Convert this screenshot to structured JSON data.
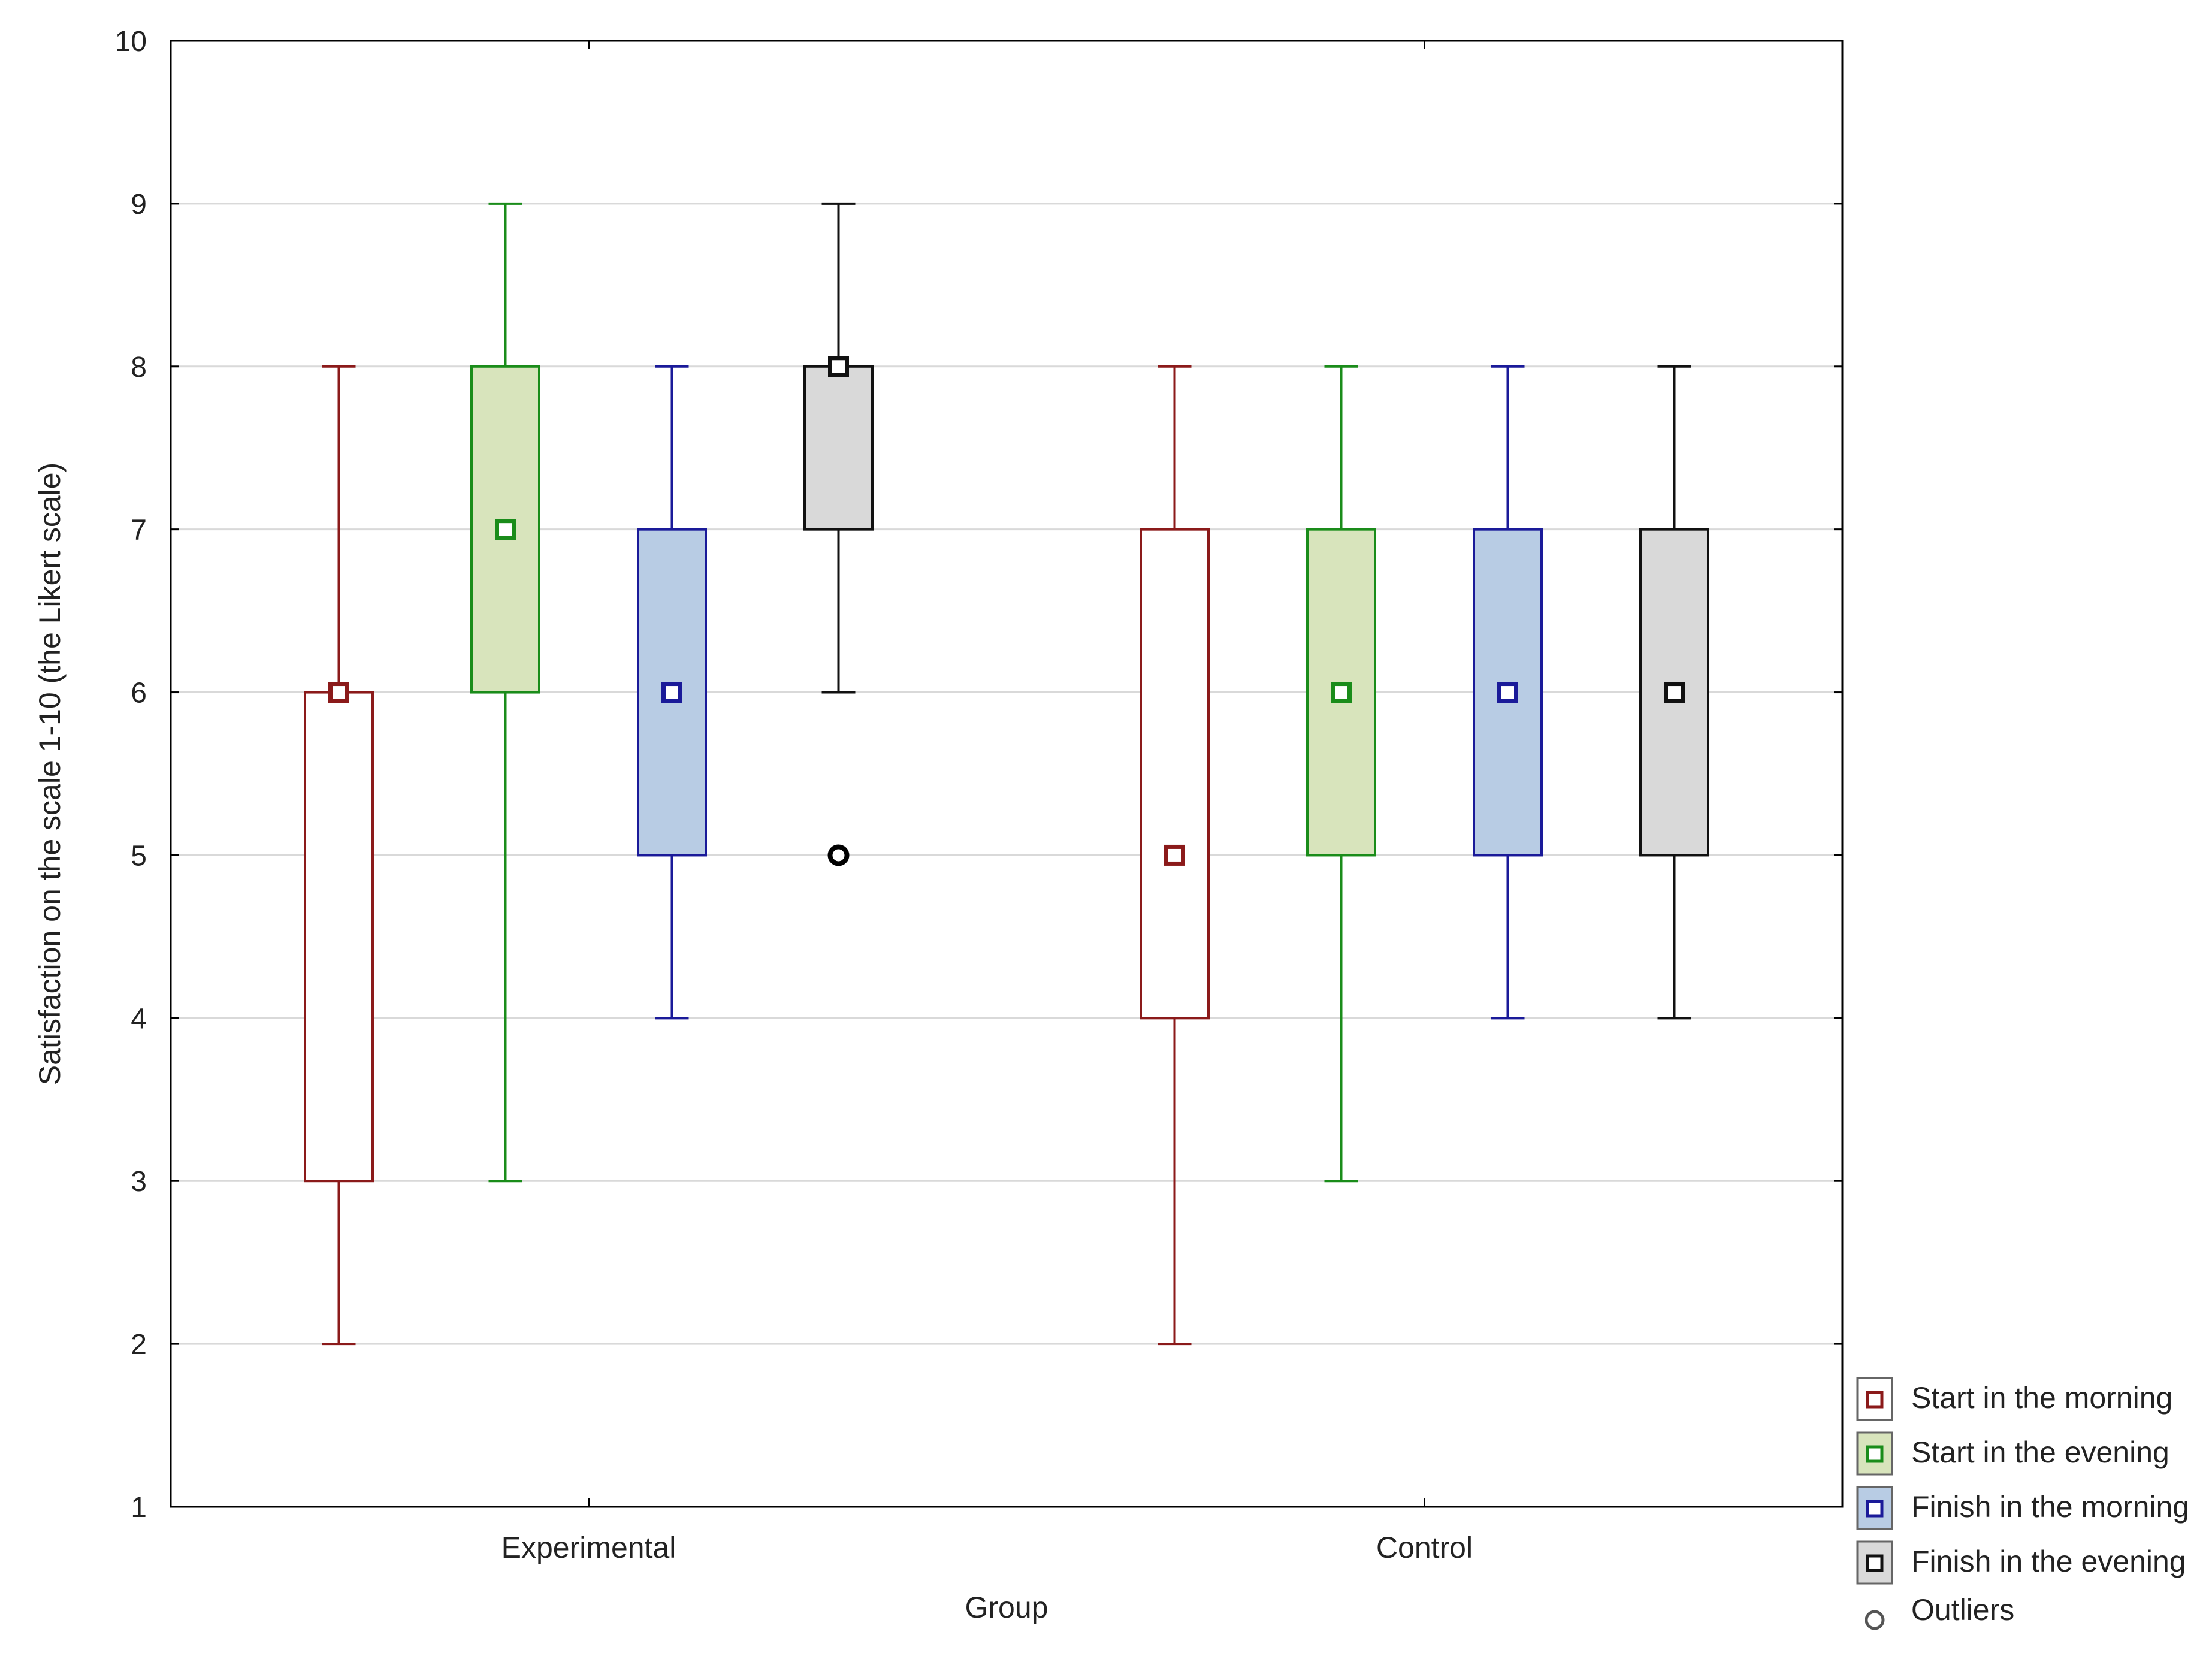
{
  "chart_data": {
    "type": "boxplot",
    "xlabel": "Group",
    "ylabel": "Satisfaction on the scale 1-10 (the Likert scale)",
    "ylim": [
      1,
      10
    ],
    "yticks": [
      1,
      2,
      3,
      4,
      5,
      6,
      7,
      8,
      9,
      10
    ],
    "grid": true,
    "legend_position": "bottom-right",
    "categories": [
      "Experimental",
      "Control"
    ],
    "series": [
      {
        "name": "Start in the morning",
        "line_color": "#8b1a1a",
        "fill": "#ffffff",
        "boxes": [
          {
            "median": 6,
            "q1": 3,
            "q3": 6,
            "min": 2,
            "max": 8,
            "outliers": []
          },
          {
            "median": 5,
            "q1": 4,
            "q3": 7,
            "min": 2,
            "max": 8,
            "outliers": []
          }
        ]
      },
      {
        "name": "Start in the evening",
        "line_color": "#1a8c1a",
        "fill": "#d8e4bc",
        "boxes": [
          {
            "median": 7,
            "q1": 6,
            "q3": 8,
            "min": 3,
            "max": 9,
            "outliers": []
          },
          {
            "median": 6,
            "q1": 5,
            "q3": 7,
            "min": 3,
            "max": 8,
            "outliers": []
          }
        ]
      },
      {
        "name": "Finish in the morning",
        "line_color": "#1a1a99",
        "fill": "#b8cce4",
        "boxes": [
          {
            "median": 6,
            "q1": 5,
            "q3": 7,
            "min": 4,
            "max": 8,
            "outliers": []
          },
          {
            "median": 6,
            "q1": 5,
            "q3": 7,
            "min": 4,
            "max": 8,
            "outliers": []
          }
        ]
      },
      {
        "name": "Finish in the evening",
        "line_color": "#111111",
        "fill": "#d9d9d9",
        "boxes": [
          {
            "median": 8,
            "q1": 7,
            "q3": 8,
            "min": 6,
            "max": 9,
            "outliers": [
              5
            ]
          },
          {
            "median": 6,
            "q1": 5,
            "q3": 7,
            "min": 4,
            "max": 8,
            "outliers": []
          }
        ]
      }
    ],
    "outlier_label": "Outliers"
  }
}
